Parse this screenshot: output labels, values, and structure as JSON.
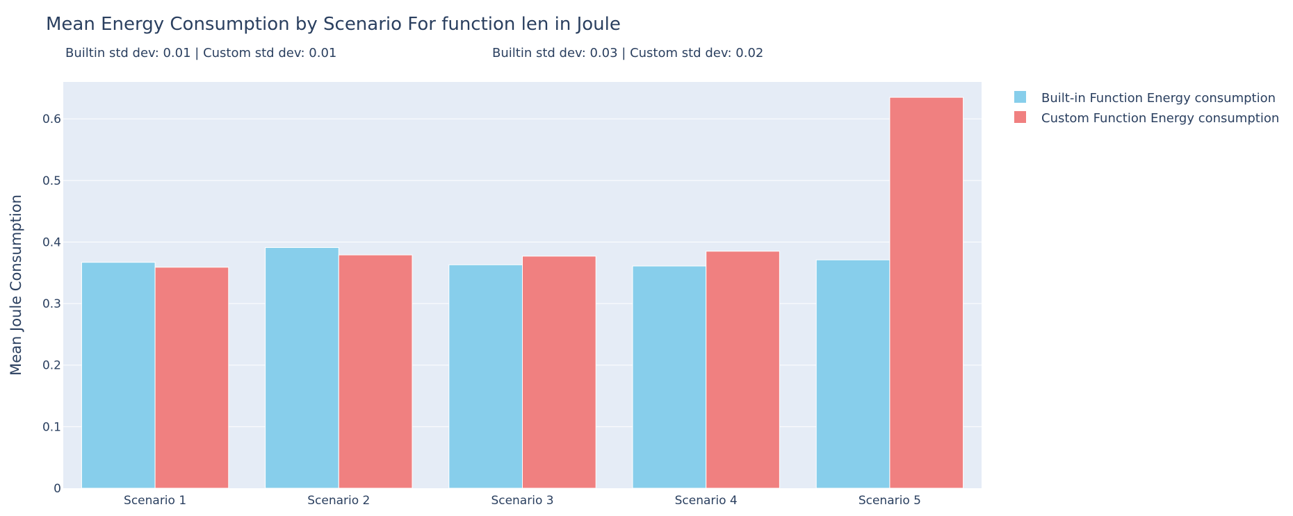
{
  "chart_data": {
    "type": "bar",
    "title": "Mean Energy Consumption by Scenario For function len in Joule",
    "annotations": [
      "Builtin std dev: 0.01 | Custom std dev: 0.01",
      "Builtin std dev: 0.03 | Custom std dev: 0.02"
    ],
    "categories": [
      "Scenario 1",
      "Scenario 2",
      "Scenario 3",
      "Scenario 4",
      "Scenario 5"
    ],
    "series": [
      {
        "name": "Built-in Function Energy consumption",
        "color": "#87ceeb",
        "values": [
          0.367,
          0.391,
          0.363,
          0.361,
          0.371
        ]
      },
      {
        "name": "Custom Function Energy consumption",
        "color": "#f08080",
        "values": [
          0.359,
          0.379,
          0.377,
          0.385,
          0.635
        ]
      }
    ],
    "xlabel": "",
    "ylabel": "Mean Joule Consumption",
    "ylim": [
      0,
      0.66
    ],
    "yticks": [
      0,
      0.1,
      0.2,
      0.3,
      0.4,
      0.5,
      0.6
    ],
    "ytick_labels": [
      "0",
      "0.1",
      "0.2",
      "0.3",
      "0.4",
      "0.5",
      "0.6"
    ],
    "grid": true,
    "legend_position": "top-right",
    "plot_background": "#e5ecf6",
    "grid_color": "#ffffff"
  }
}
